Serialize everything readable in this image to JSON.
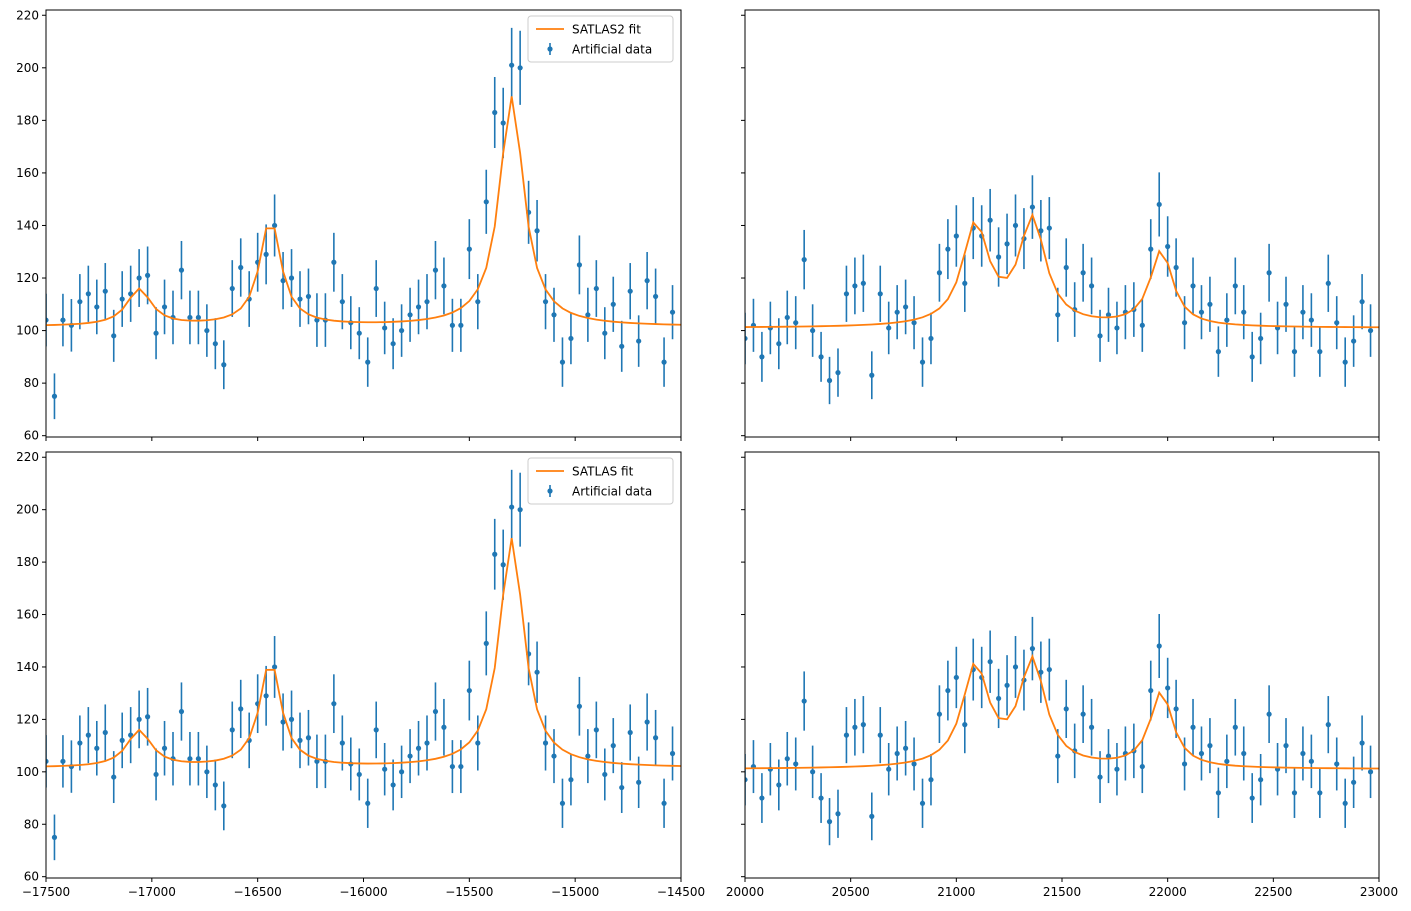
{
  "colors": {
    "data": "#1f77b4",
    "fit": "#ff7f0e"
  },
  "chart_data": [
    {
      "type": "line",
      "panel": "top-left",
      "xlim": [
        -17500,
        -14500
      ],
      "ylim": [
        59.5,
        222
      ],
      "x_ticks": [
        -17500,
        -17000,
        -16500,
        -16000,
        -15500,
        -15000,
        -14500
      ],
      "x_tick_labels_visible": false,
      "y_ticks": [
        60,
        80,
        100,
        120,
        140,
        160,
        180,
        200,
        220
      ],
      "y_tick_labels_visible": true,
      "legend": {
        "placement": "top-right",
        "fit_label": "SATLAS2 fit",
        "data_label": "Artificial data"
      },
      "fit": {
        "name": "SATLAS2 fit",
        "background": 101.5,
        "peaks": [
          {
            "x0": -17060,
            "amp": 14,
            "gamma": 70
          },
          {
            "x0": -16440,
            "amp": 41,
            "gamma": 60
          },
          {
            "x0": -15300,
            "amp": 87.5,
            "gamma": 70
          }
        ]
      },
      "data": {
        "name": "Artificial data",
        "x": [
          -17500,
          -17460,
          -17420,
          -17380,
          -17340,
          -17300,
          -17260,
          -17220,
          -17180,
          -17140,
          -17100,
          -17060,
          -17020,
          -16980,
          -16940,
          -16900,
          -16860,
          -16820,
          -16780,
          -16740,
          -16700,
          -16660,
          -16620,
          -16580,
          -16540,
          -16500,
          -16460,
          -16420,
          -16380,
          -16340,
          -16300,
          -16260,
          -16220,
          -16180,
          -16140,
          -16100,
          -16060,
          -16020,
          -15980,
          -15940,
          -15900,
          -15860,
          -15820,
          -15780,
          -15740,
          -15700,
          -15660,
          -15620,
          -15580,
          -15540,
          -15500,
          -15460,
          -15420,
          -15380,
          -15340,
          -15300,
          -15260,
          -15220,
          -15180,
          -15140,
          -15100,
          -15060,
          -15020,
          -14980,
          -14940,
          -14900,
          -14860,
          -14820,
          -14780,
          -14740,
          -14700,
          -14660,
          -14620,
          -14580,
          -14540
        ],
        "y": [
          104,
          75,
          104,
          102,
          111,
          114,
          109,
          115,
          98,
          112,
          114,
          120,
          121,
          99,
          109,
          105,
          123,
          105,
          105,
          100,
          95,
          87,
          116,
          124,
          112,
          126,
          129,
          140,
          119,
          120,
          112,
          113,
          104,
          104,
          126,
          111,
          103,
          99,
          88,
          116,
          101,
          95,
          100,
          106,
          109,
          111,
          123,
          117,
          102,
          102,
          131,
          111,
          149,
          183,
          179,
          201,
          200,
          145,
          138,
          111,
          106,
          88,
          97,
          125,
          106,
          116,
          99,
          110,
          94,
          115,
          96,
          119,
          113,
          88,
          107
        ],
        "err": [
          10,
          8.7,
          10,
          10,
          10.5,
          10.7,
          10.4,
          10.7,
          9.9,
          10.6,
          10.7,
          11,
          11,
          9.9,
          10.4,
          10.2,
          11.1,
          10.2,
          10.2,
          10,
          9.7,
          9.3,
          10.8,
          11.1,
          10.6,
          11.2,
          11.4,
          11.8,
          10.9,
          11,
          10.6,
          10.6,
          10.2,
          10.2,
          11.2,
          10.5,
          10.1,
          9.9,
          9.4,
          10.8,
          10,
          9.7,
          10,
          10.3,
          10.4,
          10.5,
          11.1,
          10.8,
          10.1,
          10.1,
          11.4,
          10.5,
          12.2,
          13.5,
          13.4,
          14.2,
          14.1,
          12,
          11.7,
          10.5,
          10.3,
          9.4,
          9.8,
          11.2,
          10.3,
          10.8,
          9.9,
          10.5,
          9.7,
          10.7,
          9.8,
          10.9,
          10.6,
          9.4,
          10.3
        ]
      }
    },
    {
      "type": "line",
      "panel": "top-right",
      "xlim": [
        20000,
        23000
      ],
      "ylim": [
        59.5,
        222
      ],
      "x_ticks": [
        20000,
        20500,
        21000,
        21500,
        22000,
        22500,
        23000
      ],
      "x_tick_labels_visible": false,
      "y_ticks": [
        60,
        80,
        100,
        120,
        140,
        160,
        180,
        200,
        220
      ],
      "y_tick_labels_visible": false,
      "fit": {
        "background": 101,
        "peaks": [
          {
            "x0": 21090,
            "amp": 38,
            "gamma": 75
          },
          {
            "x0": 21360,
            "amp": 40,
            "gamma": 75
          },
          {
            "x0": 21970,
            "amp": 29,
            "gamma": 65
          }
        ]
      },
      "data": {
        "x": [
          20000,
          20040,
          20080,
          20120,
          20160,
          20200,
          20240,
          20280,
          20320,
          20360,
          20400,
          20440,
          20480,
          20520,
          20560,
          20600,
          20640,
          20680,
          20720,
          20760,
          20800,
          20840,
          20880,
          20920,
          20960,
          21000,
          21040,
          21080,
          21120,
          21160,
          21200,
          21240,
          21280,
          21320,
          21360,
          21400,
          21440,
          21480,
          21520,
          21560,
          21600,
          21640,
          21680,
          21720,
          21760,
          21800,
          21840,
          21880,
          21920,
          21960,
          22000,
          22040,
          22080,
          22120,
          22160,
          22200,
          22240,
          22280,
          22320,
          22360,
          22400,
          22440,
          22480,
          22520,
          22560,
          22600,
          22640,
          22680,
          22720,
          22760,
          22800,
          22840,
          22880,
          22920,
          22960
        ],
        "y": [
          97,
          102,
          90,
          101,
          95,
          105,
          103,
          127,
          100,
          90,
          81,
          84,
          114,
          117,
          118,
          83,
          114,
          101,
          107,
          109,
          103,
          88,
          97,
          122,
          131,
          136,
          118,
          139,
          136,
          142,
          128,
          133,
          140,
          135,
          147,
          138,
          139,
          106,
          124,
          108,
          122,
          117,
          98,
          106,
          101,
          107,
          108,
          102,
          131,
          148,
          132,
          124,
          103,
          117,
          107,
          110,
          92,
          104,
          117,
          107,
          90,
          97,
          122,
          101,
          110,
          92,
          107,
          104,
          92,
          118,
          103,
          88,
          96,
          111,
          100
        ],
        "err": [
          9.8,
          10.1,
          9.5,
          10,
          9.7,
          10.2,
          10.1,
          11.3,
          10,
          9.5,
          9,
          9.2,
          10.7,
          10.8,
          10.9,
          9.1,
          10.7,
          10,
          10.3,
          10.4,
          10.1,
          9.4,
          9.8,
          11,
          11.4,
          11.7,
          10.9,
          11.8,
          11.7,
          11.9,
          11.3,
          11.5,
          11.8,
          11.6,
          12.1,
          11.7,
          11.8,
          10.3,
          11.1,
          10.4,
          11,
          10.8,
          9.9,
          10.3,
          10,
          10.3,
          10.4,
          10.1,
          11.4,
          12.2,
          11.5,
          11.1,
          10.1,
          10.8,
          10.3,
          10.5,
          9.6,
          10.2,
          10.8,
          10.3,
          9.5,
          9.8,
          11,
          10,
          10.5,
          9.6,
          10.3,
          10.2,
          9.6,
          10.9,
          10.1,
          9.4,
          9.8,
          10.5,
          10
        ]
      }
    },
    {
      "type": "line",
      "panel": "bottom-left",
      "xlim": [
        -17500,
        -14500
      ],
      "ylim": [
        59.5,
        222
      ],
      "x_ticks": [
        -17500,
        -17000,
        -16500,
        -16000,
        -15500,
        -15000,
        -14500
      ],
      "x_tick_labels_visible": true,
      "y_ticks": [
        60,
        80,
        100,
        120,
        140,
        160,
        180,
        200,
        220
      ],
      "y_tick_labels_visible": true,
      "legend": {
        "placement": "top-right",
        "fit_label": "SATLAS fit",
        "data_label": "Artificial data"
      },
      "fit": {
        "name": "SATLAS fit",
        "background": 101.5,
        "peaks": [
          {
            "x0": -17060,
            "amp": 14,
            "gamma": 70
          },
          {
            "x0": -16440,
            "amp": 41,
            "gamma": 60
          },
          {
            "x0": -15300,
            "amp": 87.5,
            "gamma": 70
          }
        ]
      },
      "data": {
        "name": "Artificial data",
        "x": [
          -17500,
          -17460,
          -17420,
          -17380,
          -17340,
          -17300,
          -17260,
          -17220,
          -17180,
          -17140,
          -17100,
          -17060,
          -17020,
          -16980,
          -16940,
          -16900,
          -16860,
          -16820,
          -16780,
          -16740,
          -16700,
          -16660,
          -16620,
          -16580,
          -16540,
          -16500,
          -16460,
          -16420,
          -16380,
          -16340,
          -16300,
          -16260,
          -16220,
          -16180,
          -16140,
          -16100,
          -16060,
          -16020,
          -15980,
          -15940,
          -15900,
          -15860,
          -15820,
          -15780,
          -15740,
          -15700,
          -15660,
          -15620,
          -15580,
          -15540,
          -15500,
          -15460,
          -15420,
          -15380,
          -15340,
          -15300,
          -15260,
          -15220,
          -15180,
          -15140,
          -15100,
          -15060,
          -15020,
          -14980,
          -14940,
          -14900,
          -14860,
          -14820,
          -14780,
          -14740,
          -14700,
          -14660,
          -14620,
          -14580,
          -14540
        ],
        "y": [
          104,
          75,
          104,
          102,
          111,
          114,
          109,
          115,
          98,
          112,
          114,
          120,
          121,
          99,
          109,
          105,
          123,
          105,
          105,
          100,
          95,
          87,
          116,
          124,
          112,
          126,
          129,
          140,
          119,
          120,
          112,
          113,
          104,
          104,
          126,
          111,
          103,
          99,
          88,
          116,
          101,
          95,
          100,
          106,
          109,
          111,
          123,
          117,
          102,
          102,
          131,
          111,
          149,
          183,
          179,
          201,
          200,
          145,
          138,
          111,
          106,
          88,
          97,
          125,
          106,
          116,
          99,
          110,
          94,
          115,
          96,
          119,
          113,
          88,
          107
        ],
        "err": [
          10,
          8.7,
          10,
          10,
          10.5,
          10.7,
          10.4,
          10.7,
          9.9,
          10.6,
          10.7,
          11,
          11,
          9.9,
          10.4,
          10.2,
          11.1,
          10.2,
          10.2,
          10,
          9.7,
          9.3,
          10.8,
          11.1,
          10.6,
          11.2,
          11.4,
          11.8,
          10.9,
          11,
          10.6,
          10.6,
          10.2,
          10.2,
          11.2,
          10.5,
          10.1,
          9.9,
          9.4,
          10.8,
          10,
          9.7,
          10,
          10.3,
          10.4,
          10.5,
          11.1,
          10.8,
          10.1,
          10.1,
          11.4,
          10.5,
          12.2,
          13.5,
          13.4,
          14.2,
          14.1,
          12,
          11.7,
          10.5,
          10.3,
          9.4,
          9.8,
          11.2,
          10.3,
          10.8,
          9.9,
          10.5,
          9.7,
          10.7,
          9.8,
          10.9,
          10.6,
          9.4,
          10.3
        ]
      }
    },
    {
      "type": "line",
      "panel": "bottom-right",
      "xlim": [
        20000,
        23000
      ],
      "ylim": [
        59.5,
        222
      ],
      "x_ticks": [
        20000,
        20500,
        21000,
        21500,
        22000,
        22500,
        23000
      ],
      "x_tick_labels_visible": true,
      "y_ticks": [
        60,
        80,
        100,
        120,
        140,
        160,
        180,
        200,
        220
      ],
      "y_tick_labels_visible": false,
      "fit": {
        "background": 101,
        "peaks": [
          {
            "x0": 21090,
            "amp": 38,
            "gamma": 75
          },
          {
            "x0": 21360,
            "amp": 40,
            "gamma": 75
          },
          {
            "x0": 21970,
            "amp": 29,
            "gamma": 65
          }
        ]
      },
      "data": {
        "x": [
          20000,
          20040,
          20080,
          20120,
          20160,
          20200,
          20240,
          20280,
          20320,
          20360,
          20400,
          20440,
          20480,
          20520,
          20560,
          20600,
          20640,
          20680,
          20720,
          20760,
          20800,
          20840,
          20880,
          20920,
          20960,
          21000,
          21040,
          21080,
          21120,
          21160,
          21200,
          21240,
          21280,
          21320,
          21360,
          21400,
          21440,
          21480,
          21520,
          21560,
          21600,
          21640,
          21680,
          21720,
          21760,
          21800,
          21840,
          21880,
          21920,
          21960,
          22000,
          22040,
          22080,
          22120,
          22160,
          22200,
          22240,
          22280,
          22320,
          22360,
          22400,
          22440,
          22480,
          22520,
          22560,
          22600,
          22640,
          22680,
          22720,
          22760,
          22800,
          22840,
          22880,
          22920,
          22960
        ],
        "y": [
          97,
          102,
          90,
          101,
          95,
          105,
          103,
          127,
          100,
          90,
          81,
          84,
          114,
          117,
          118,
          83,
          114,
          101,
          107,
          109,
          103,
          88,
          97,
          122,
          131,
          136,
          118,
          139,
          136,
          142,
          128,
          133,
          140,
          135,
          147,
          138,
          139,
          106,
          124,
          108,
          122,
          117,
          98,
          106,
          101,
          107,
          108,
          102,
          131,
          148,
          132,
          124,
          103,
          117,
          107,
          110,
          92,
          104,
          117,
          107,
          90,
          97,
          122,
          101,
          110,
          92,
          107,
          104,
          92,
          118,
          103,
          88,
          96,
          111,
          100
        ],
        "err": [
          9.8,
          10.1,
          9.5,
          10,
          9.7,
          10.2,
          10.1,
          11.3,
          10,
          9.5,
          9,
          9.2,
          10.7,
          10.8,
          10.9,
          9.1,
          10.7,
          10,
          10.3,
          10.4,
          10.1,
          9.4,
          9.8,
          11,
          11.4,
          11.7,
          10.9,
          11.8,
          11.7,
          11.9,
          11.3,
          11.5,
          11.8,
          11.6,
          12.1,
          11.7,
          11.8,
          10.3,
          11.1,
          10.4,
          11,
          10.8,
          9.9,
          10.3,
          10,
          10.3,
          10.4,
          10.1,
          11.4,
          12.2,
          11.5,
          11.1,
          10.1,
          10.8,
          10.3,
          10.5,
          9.6,
          10.2,
          10.8,
          10.3,
          9.5,
          9.8,
          11,
          10,
          10.5,
          9.6,
          10.3,
          10.2,
          9.6,
          10.9,
          10.1,
          9.4,
          9.8,
          10.5,
          10
        ]
      }
    }
  ]
}
